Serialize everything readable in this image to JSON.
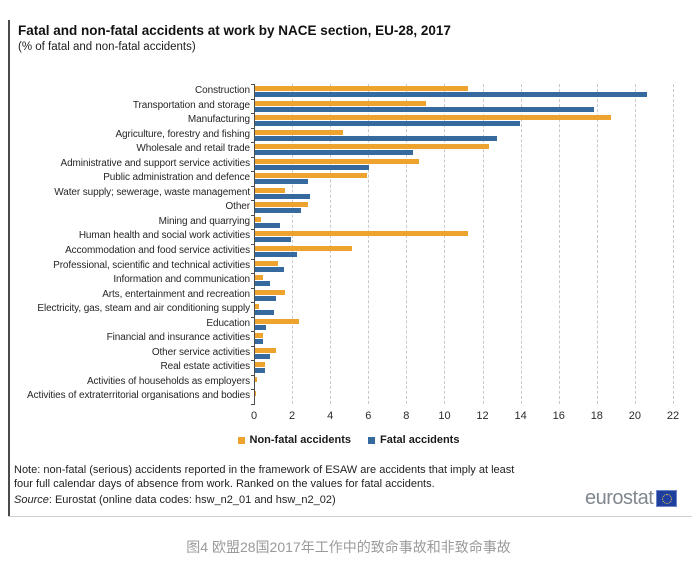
{
  "figure": {
    "title": "Fatal and non-fatal accidents at work by NACE section, EU-28, 2017",
    "subtitle": "(% of fatal and non-fatal accidents)",
    "note": "Note: non-fatal (serious) accidents reported in the framework of ESAW are accidents that imply at least four full calendar days of absence from work. Ranked on the values for fatal accidents.",
    "source_label": "Source",
    "source_rest": ": Eurostat (online data codes: hsw_n2_01 and hsw_n2_02)",
    "logo_text": "eurostat"
  },
  "caption": "图4  欧盟28国2017年工作中的致命事故和非致命事故",
  "chart_data": {
    "type": "bar",
    "orientation": "horizontal",
    "title": "Fatal and non-fatal accidents at work by NACE section, EU-28, 2017",
    "subtitle": "(% of fatal and non-fatal accidents)",
    "xlabel": "",
    "ylabel": "",
    "xlim": [
      0,
      22
    ],
    "x_ticks": [
      0,
      2,
      4,
      6,
      8,
      10,
      12,
      14,
      16,
      18,
      20,
      22
    ],
    "grid": "vertical dashed gridlines every 2 units",
    "legend_position": "bottom-center",
    "ranking_note": "Ranked on the values for fatal accidents",
    "categories": [
      "Construction",
      "Transportation and storage",
      "Manufacturing",
      "Agriculture, forestry and fishing",
      "Wholesale and retail trade",
      "Administrative and support service activities",
      "Public administration and defence",
      "Water supply; sewerage, waste management",
      "Other",
      "Mining and quarrying",
      "Human health and social work activities",
      "Accommodation and food service activities",
      "Professional, scientific and technical activities",
      "Information and communication",
      "Arts, entertainment and recreation",
      "Electricity, gas, steam and air conditioning supply",
      "Education",
      "Financial and insurance activities",
      "Other service activities",
      "Real estate activities",
      "Activities of households as employers",
      "Activities of extraterritorial organisations and bodies"
    ],
    "series": [
      {
        "name": "Non-fatal accidents",
        "color": "#EEA32F",
        "values": [
          11.2,
          9.0,
          18.7,
          4.6,
          12.3,
          8.6,
          5.9,
          1.6,
          2.8,
          0.3,
          11.2,
          5.1,
          1.2,
          0.4,
          1.6,
          0.2,
          2.3,
          0.4,
          1.1,
          0.5,
          0.1,
          0.05
        ]
      },
      {
        "name": "Fatal accidents",
        "color": "#366A9E",
        "values": [
          20.6,
          17.8,
          13.9,
          12.7,
          8.3,
          6.0,
          2.8,
          2.9,
          2.4,
          1.3,
          1.9,
          2.2,
          1.5,
          0.8,
          1.1,
          1.0,
          0.6,
          0.4,
          0.8,
          0.5,
          0.0,
          0.0
        ]
      }
    ]
  }
}
